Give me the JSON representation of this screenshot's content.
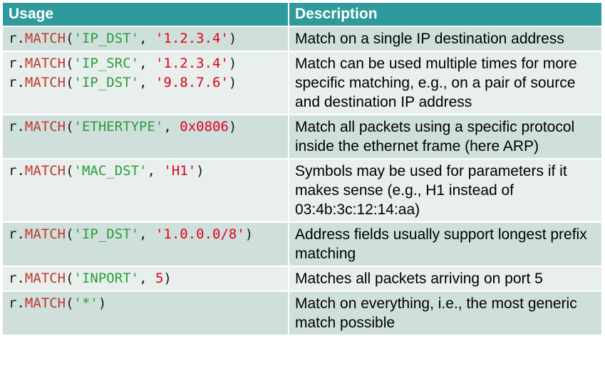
{
  "headers": {
    "usage": "Usage",
    "description": "Description"
  },
  "rows": [
    {
      "code_lines": [
        {
          "obj": "r.",
          "fn": "MATCH",
          "open": "(",
          "key": "'IP_DST'",
          "sep": ", ",
          "value": "'1.2.3.4'",
          "close": ")"
        }
      ],
      "description": "Match on a single IP destination address"
    },
    {
      "code_lines": [
        {
          "obj": "r.",
          "fn": "MATCH",
          "open": "(",
          "key": "'IP_SRC'",
          "sep": ", ",
          "value": "'1.2.3.4'",
          "close": ")"
        },
        {
          "obj": "r.",
          "fn": "MATCH",
          "open": "(",
          "key": "'IP_DST'",
          "sep": ", ",
          "value": "'9.8.7.6'",
          "close": ")"
        }
      ],
      "description": "Match can be used multiple times for more specific matching, e.g., on a pair of source and destination IP address"
    },
    {
      "code_lines": [
        {
          "obj": "r.",
          "fn": "MATCH",
          "open": "(",
          "key": "'ETHERTYPE'",
          "sep": ", ",
          "value": "0x0806",
          "close": ")"
        }
      ],
      "description": "Match all packets using a specific protocol inside the ethernet frame (here ARP)"
    },
    {
      "code_lines": [
        {
          "obj": "r.",
          "fn": "MATCH",
          "open": "(",
          "key": "'MAC_DST'",
          "sep": ", ",
          "value": "'H1'",
          "close": ")"
        }
      ],
      "description": "Symbols may be used for parameters if it makes sense (e.g., H1 instead of 03:4b:3c:12:14:aa)"
    },
    {
      "code_lines": [
        {
          "obj": "r.",
          "fn": "MATCH",
          "open": "(",
          "key": "'IP_DST'",
          "sep": ", ",
          "value": "'1.0.0.0/8'",
          "close": ")"
        }
      ],
      "description": "Address fields usually support longest prefix matching"
    },
    {
      "code_lines": [
        {
          "obj": "r.",
          "fn": "MATCH",
          "open": "(",
          "key": "'INPORT'",
          "sep": ", ",
          "value": "5",
          "close": ")"
        }
      ],
      "description": "Matches all packets arriving on port 5"
    },
    {
      "code_lines": [
        {
          "obj": "r.",
          "fn": "MATCH",
          "open": "(",
          "key": "'*'",
          "sep": "",
          "value": "",
          "close": ")"
        }
      ],
      "description": "Match on everything, i.e., the most generic match possible"
    }
  ],
  "colors": {
    "header_bg": "#2e9a9c",
    "row_dark": "#cfe0dc",
    "row_light": "#e8efed",
    "function": "#c0392b",
    "string": "#2a9c3a",
    "value": "#e0001b"
  }
}
